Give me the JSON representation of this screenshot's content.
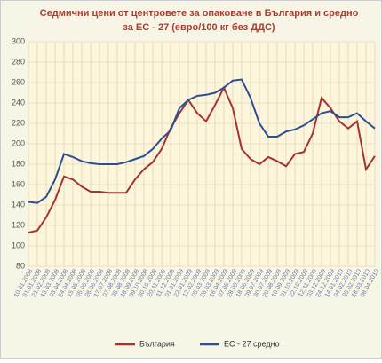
{
  "chart_data": {
    "type": "line",
    "title": [
      "Седмични цени от центровете за опаковане в България и средно",
      "за ЕС - 27 (евро/100 кг без ДДС)"
    ],
    "categories": [
      "10.01.2008",
      "31.01.2008",
      "21.02.2008",
      "13.03.2008",
      "03.04.2008",
      "24.04.2008",
      "15.05.2008",
      "05.06.2008",
      "26.06.2008",
      "17.07.2008",
      "07.08.2008",
      "28.08.2008",
      "18.09.2008",
      "09.10.2008",
      "30.10.2008",
      "20.11.2008",
      "11.12.2008",
      "01.01.2009",
      "22.01.2009",
      "12.02.2009",
      "05.03.2009",
      "26.03.2009",
      "16.04.2009",
      "07.05.2009",
      "28.05.2009",
      "18.06.2009",
      "09.07.2009",
      "30.07.2009",
      "20.08.2009",
      "10.09.2009",
      "01.10.2009",
      "22.10.2009",
      "12.11.2009",
      "03.12.2009",
      "24.12.2009",
      "14.01.2010",
      "04.02.2010",
      "25.02.2010",
      "18.03.2010",
      "08.04.2010"
    ],
    "series": [
      {
        "name": "България",
        "color": "#a5332f",
        "values": [
          113,
          115,
          128,
          145,
          168,
          165,
          158,
          153,
          153,
          152,
          152,
          152,
          165,
          175,
          182,
          195,
          215,
          230,
          243,
          230,
          222,
          238,
          255,
          235,
          195,
          185,
          180,
          187,
          183,
          178,
          190,
          192,
          210,
          245,
          235,
          222,
          215,
          222,
          175,
          188
        ]
      },
      {
        "name": "ЕС - 27 средно",
        "color": "#2c4f94",
        "values": [
          143,
          142,
          148,
          165,
          190,
          187,
          183,
          181,
          180,
          180,
          180,
          182,
          185,
          188,
          195,
          205,
          213,
          235,
          243,
          247,
          248,
          250,
          255,
          262,
          263,
          245,
          220,
          207,
          207,
          212,
          214,
          218,
          224,
          230,
          232,
          226,
          226,
          230,
          222,
          215
        ]
      }
    ],
    "ylim": [
      80,
      300
    ],
    "yticks": [
      80,
      100,
      120,
      140,
      160,
      180,
      200,
      220,
      240,
      260,
      280,
      300
    ],
    "grid": true,
    "legend": "bottom"
  }
}
